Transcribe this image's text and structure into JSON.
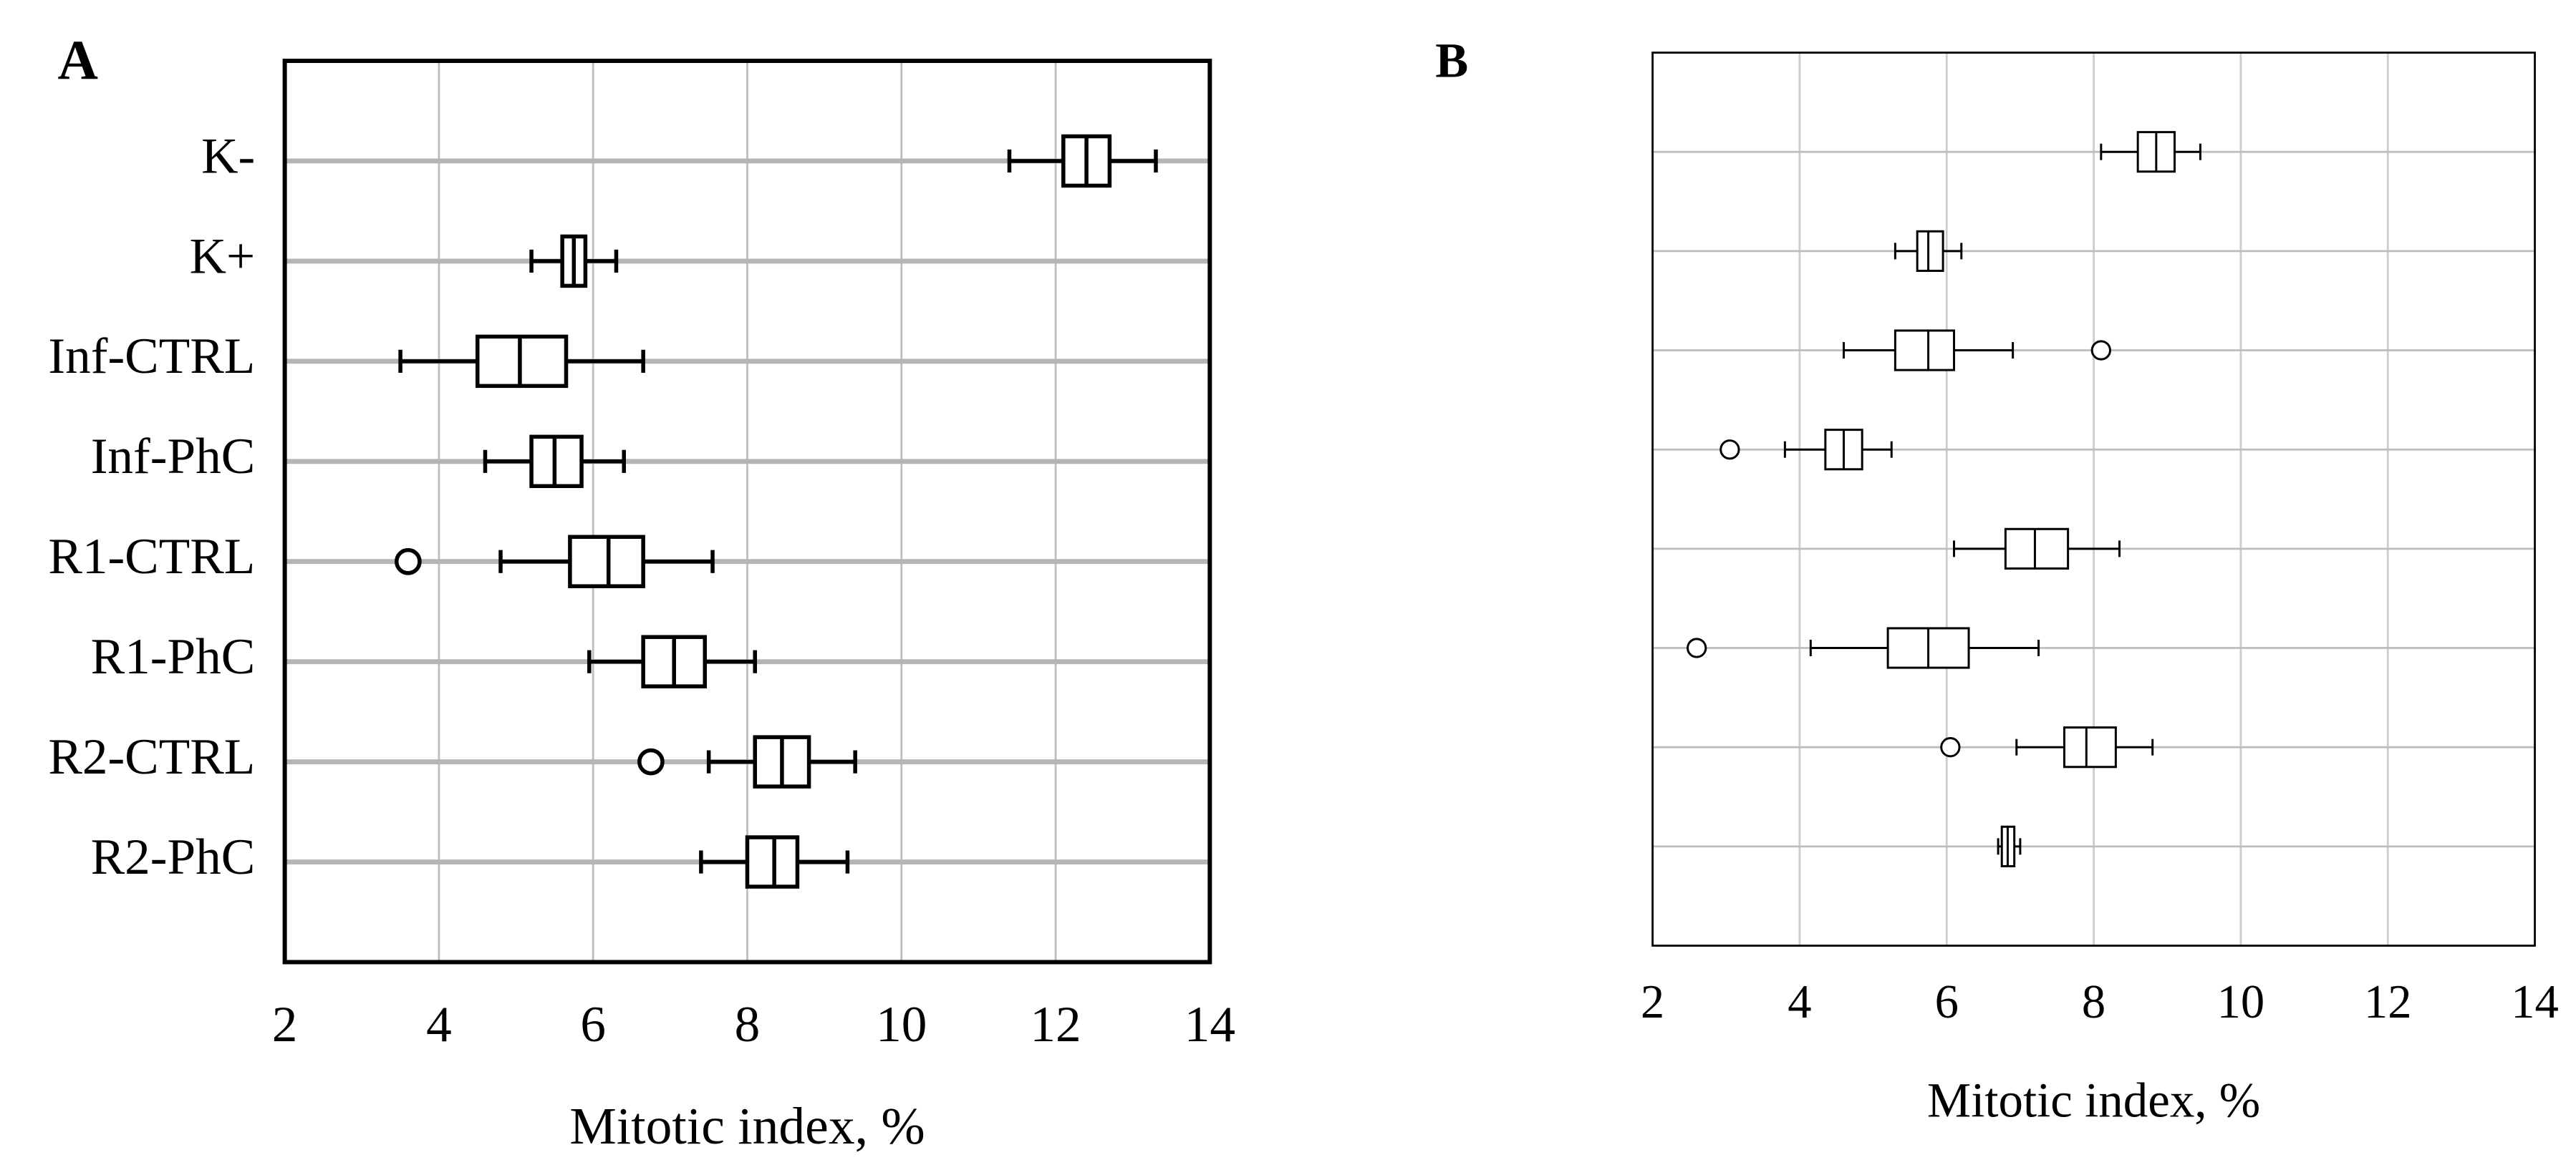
{
  "chart_data": [
    {
      "type": "boxplot",
      "label": "A",
      "x_label": "Mitotic index, %",
      "categories": [
        "K-",
        "K+",
        "Inf-CTRL",
        "Inf-PhC",
        "R1-CTRL",
        "R1-PhC",
        "R2-CTRL",
        "R2-PhC"
      ],
      "whisker_low": [
        11.4,
        5.2,
        3.5,
        4.6,
        4.8,
        5.95,
        7.5,
        7.4
      ],
      "q1": [
        12.1,
        5.6,
        4.5,
        5.2,
        5.7,
        6.65,
        8.1,
        8.0
      ],
      "median": [
        12.4,
        5.75,
        5.05,
        5.5,
        6.2,
        7.05,
        8.45,
        8.35
      ],
      "q3": [
        12.7,
        5.9,
        5.65,
        5.85,
        6.65,
        7.45,
        8.8,
        8.65
      ],
      "whisker_high": [
        13.3,
        6.3,
        6.65,
        6.4,
        7.55,
        8.1,
        9.4,
        9.3
      ],
      "outliers": [
        [],
        [],
        [],
        [],
        [
          3.6
        ],
        [],
        [
          6.75
        ],
        []
      ],
      "xlim": [
        2,
        14
      ],
      "xticks": [
        2,
        4,
        6,
        8,
        10,
        12,
        14
      ],
      "grid": true
    },
    {
      "type": "boxplot",
      "label": "B",
      "x_label": "Mitotic index, %",
      "categories": [
        null,
        null,
        null,
        null,
        null,
        null,
        null,
        null
      ],
      "whisker_low": [
        8.1,
        5.3,
        4.6,
        3.8,
        6.1,
        4.15,
        6.95,
        6.7
      ],
      "q1": [
        8.6,
        5.6,
        5.3,
        4.35,
        6.8,
        5.2,
        7.6,
        6.75
      ],
      "median": [
        8.85,
        5.75,
        5.75,
        4.6,
        7.2,
        5.75,
        7.9,
        6.83
      ],
      "q3": [
        9.1,
        5.95,
        6.1,
        4.85,
        7.65,
        6.3,
        8.3,
        6.92
      ],
      "whisker_high": [
        9.45,
        6.2,
        6.9,
        5.25,
        8.35,
        7.25,
        8.8,
        7.0
      ],
      "outliers": [
        [],
        [],
        [
          8.1
        ],
        [
          3.05
        ],
        [],
        [
          2.6
        ],
        [
          6.05
        ],
        []
      ],
      "xlim": [
        2,
        14
      ],
      "xticks": [
        2,
        4,
        6,
        8,
        10,
        12,
        14
      ],
      "grid": true
    }
  ]
}
